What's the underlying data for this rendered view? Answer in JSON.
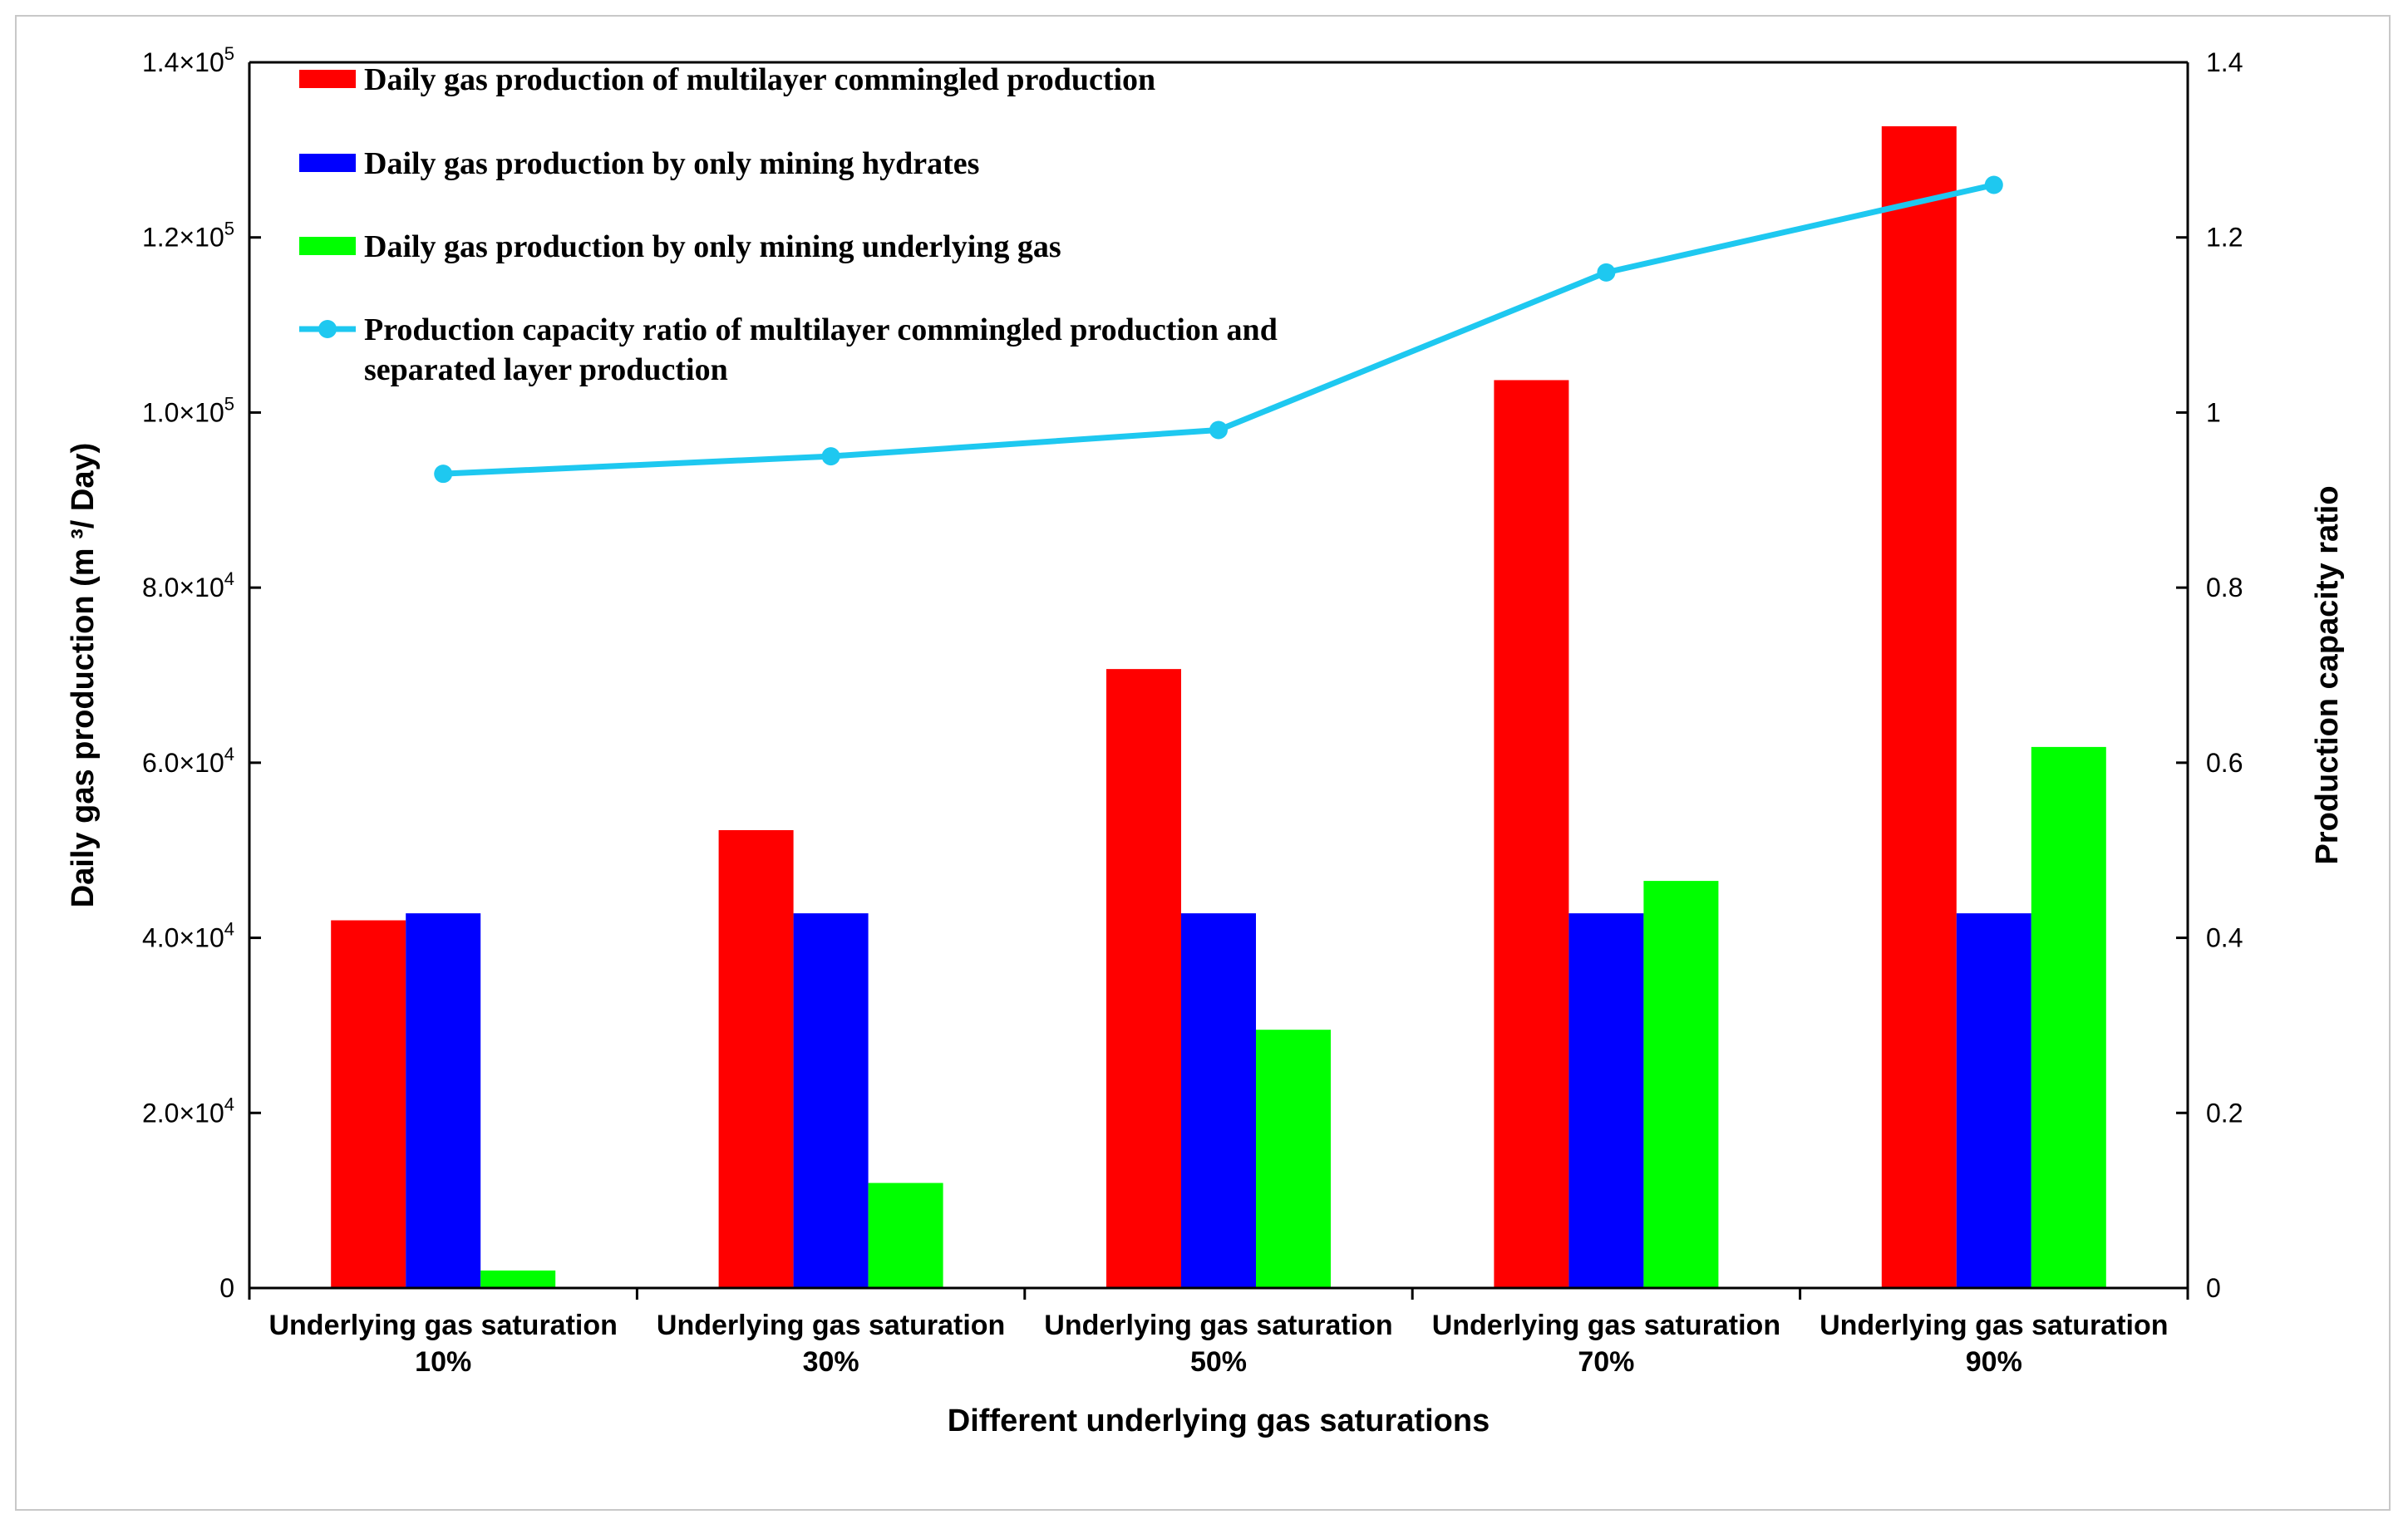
{
  "chart_data": {
    "type": "bar",
    "categories": [
      [
        "Underlying gas saturation",
        "10%"
      ],
      [
        "Underlying gas saturation",
        "30%"
      ],
      [
        "Underlying gas saturation",
        "50%"
      ],
      [
        "Underlying gas saturation",
        "70%"
      ],
      [
        "Underlying gas saturation",
        "90%"
      ]
    ],
    "series": [
      {
        "name": "Daily gas production of multilayer commingled production",
        "color": "#ff0000",
        "values": [
          42000,
          52300,
          70700,
          103700,
          132700
        ]
      },
      {
        "name": "Daily gas production by only mining hydrates",
        "color": "#0000ff",
        "values": [
          42800,
          42800,
          42800,
          42800,
          42800
        ]
      },
      {
        "name": "Daily gas production by only mining underlying gas",
        "color": "#00ff00",
        "values": [
          2000,
          12000,
          29500,
          46500,
          61800
        ]
      }
    ],
    "line_series": {
      "name_lines": [
        "Production capacity ratio of multilayer commingled production and",
        "separated layer production"
      ],
      "color": "#1ec8f0",
      "axis": "right",
      "values": [
        0.93,
        0.95,
        0.98,
        1.16,
        1.26
      ]
    },
    "xlabel": "Different underlying gas saturations",
    "ylabel": "Daily gas production (m ³/ Day)",
    "y2label": "Production capacity ratio",
    "ylim": [
      0,
      140000
    ],
    "y2lim": [
      0,
      1.4
    ],
    "yticks": [
      {
        "value": 0,
        "label": "0"
      },
      {
        "value": 20000,
        "mant": "2.0×10",
        "exp": "4"
      },
      {
        "value": 40000,
        "mant": "4.0×10",
        "exp": "4"
      },
      {
        "value": 60000,
        "mant": "6.0×10",
        "exp": "4"
      },
      {
        "value": 80000,
        "mant": "8.0×10",
        "exp": "4"
      },
      {
        "value": 100000,
        "mant": "1.0×10",
        "exp": "5"
      },
      {
        "value": 120000,
        "mant": "1.2×10",
        "exp": "5"
      },
      {
        "value": 140000,
        "mant": "1.4×10",
        "exp": "5"
      }
    ],
    "y2ticks": [
      {
        "value": 0,
        "label": "0"
      },
      {
        "value": 0.2,
        "label": "0.2"
      },
      {
        "value": 0.4,
        "label": "0.4"
      },
      {
        "value": 0.6,
        "label": "0.6"
      },
      {
        "value": 0.8,
        "label": "0.8"
      },
      {
        "value": 1.0,
        "label": "1"
      },
      {
        "value": 1.2,
        "label": "1.2"
      },
      {
        "value": 1.4,
        "label": "1.4"
      }
    ],
    "legend_position": "top-left",
    "grid": false
  }
}
